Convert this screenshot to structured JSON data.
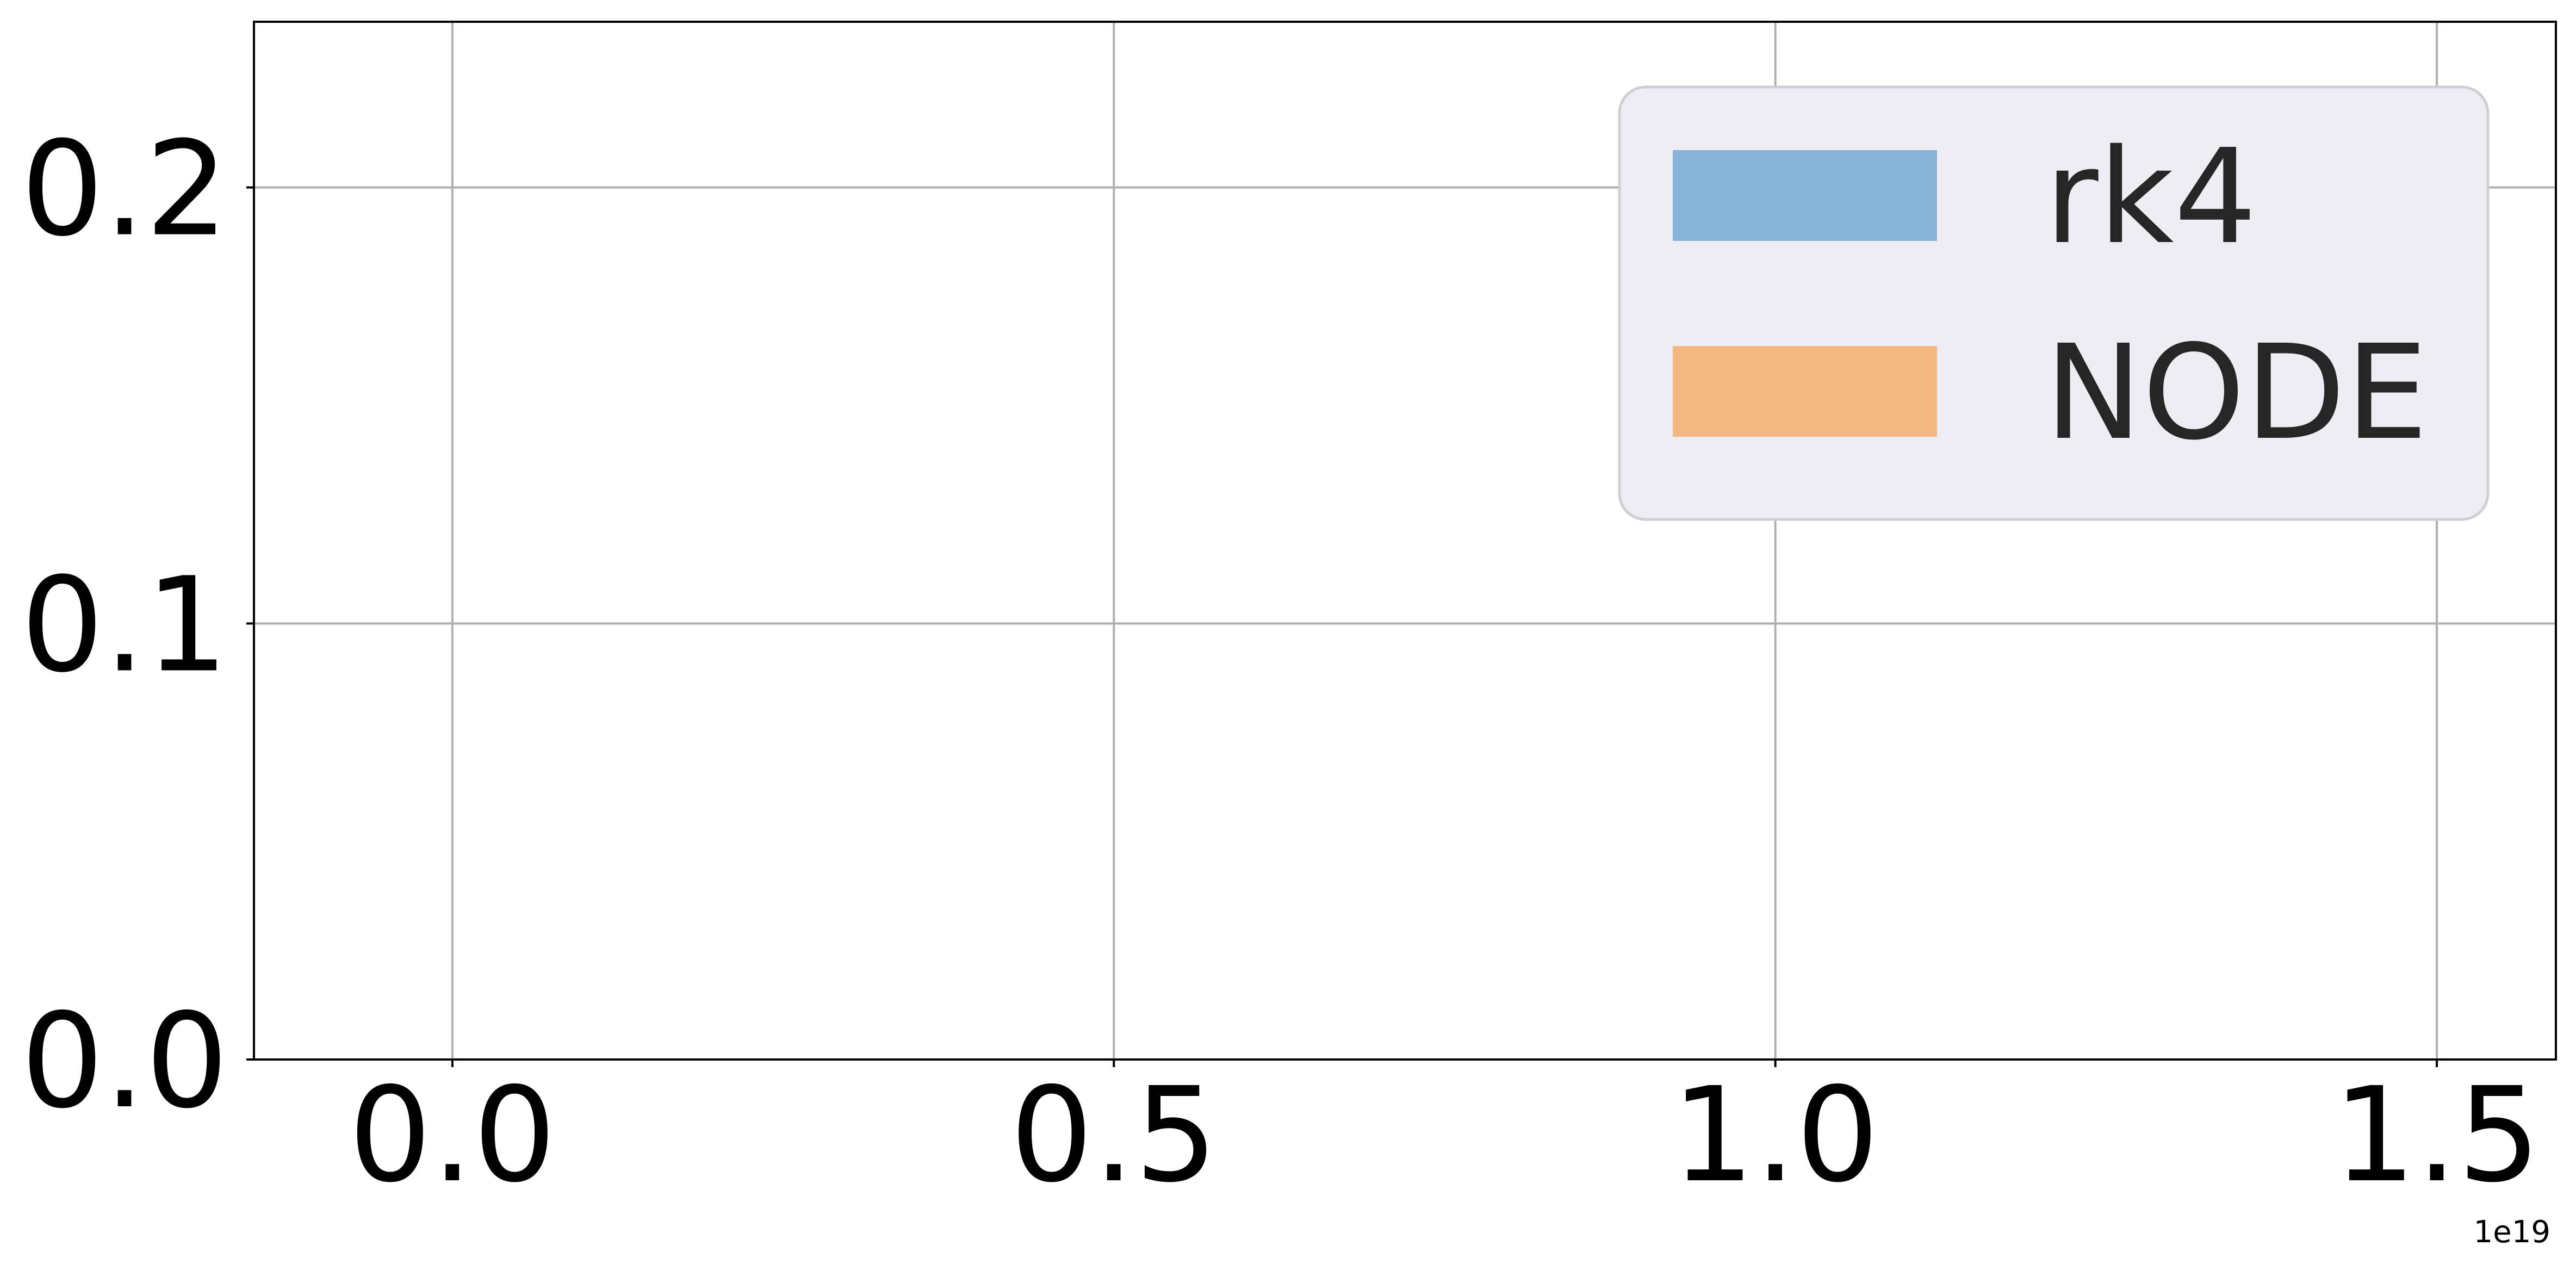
{
  "chart_data": {
    "type": "bar",
    "title": "",
    "xlabel": "",
    "ylabel": "",
    "xlim": [
      -0.15,
      1.59
    ],
    "ylim": [
      0.0,
      0.238
    ],
    "x_ticks": [
      {
        "value": 0.0,
        "label": "0.0"
      },
      {
        "value": 0.5,
        "label": "0.5"
      },
      {
        "value": 1.0,
        "label": "1.0"
      },
      {
        "value": 1.5,
        "label": "1.5"
      }
    ],
    "y_ticks": [
      {
        "value": 0.0,
        "label": "0.0"
      },
      {
        "value": 0.1,
        "label": "0.1"
      },
      {
        "value": 0.2,
        "label": "0.2"
      }
    ],
    "x_offset_label": "1e19",
    "grid": true,
    "legend_position": "top-right",
    "series": [
      {
        "name": "rk4",
        "color": "#86b3d6",
        "values": []
      },
      {
        "name": "NODE",
        "color": "#f4b882",
        "values": []
      }
    ]
  }
}
